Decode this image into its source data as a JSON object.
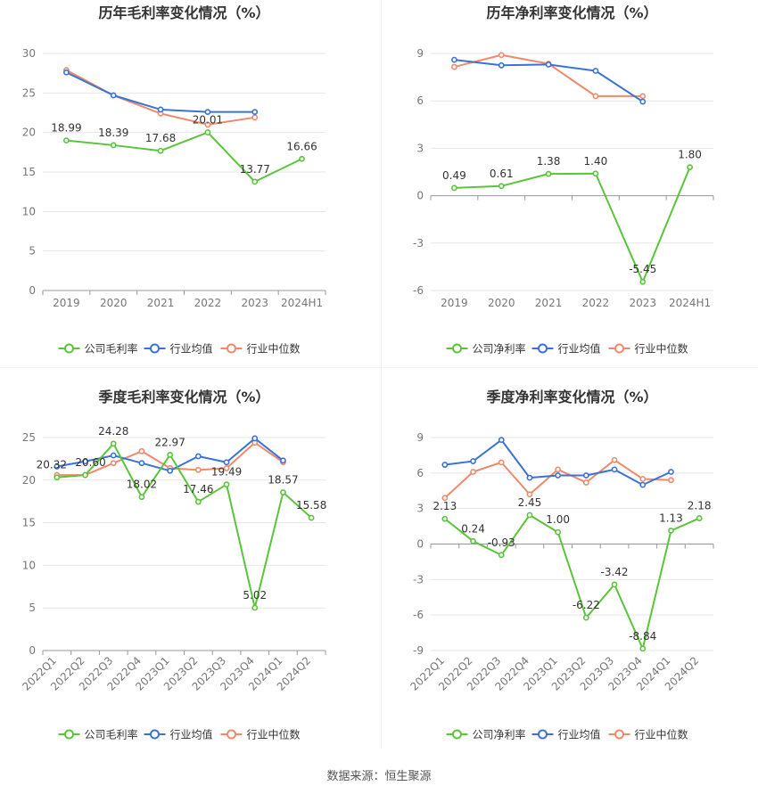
{
  "source": "数据来源：恒生聚源",
  "colors": {
    "company": "#5ac53a",
    "industry_avg": "#3a72d8",
    "industry_median": "#f0896a",
    "grid": "#e6e6e6",
    "axis_text": "#777777",
    "label_text": "#333333"
  },
  "chart_data": [
    {
      "id": "annual-gross",
      "type": "line",
      "title": "历年毛利率变化情况（%）",
      "categories": [
        "2019",
        "2020",
        "2021",
        "2022",
        "2023",
        "2024H1"
      ],
      "yticks": [
        0,
        5,
        10,
        15,
        20,
        25,
        30
      ],
      "ylim": [
        0,
        30
      ],
      "rotate_x": false,
      "series": [
        {
          "key": "company",
          "name": "公司毛利率",
          "values": [
            18.99,
            18.39,
            17.68,
            20.01,
            13.77,
            16.66
          ],
          "labels": [
            "18.99",
            "18.39",
            "17.68",
            "20.01",
            "13.77",
            "16.66"
          ]
        },
        {
          "key": "industry_avg",
          "name": "行业均值",
          "values": [
            27.6,
            24.7,
            22.9,
            22.6,
            22.6,
            null
          ]
        },
        {
          "key": "industry_median",
          "name": "行业中位数",
          "values": [
            27.9,
            24.7,
            22.4,
            21.0,
            21.9,
            null
          ]
        }
      ]
    },
    {
      "id": "annual-net",
      "type": "line",
      "title": "历年净利率变化情况（%）",
      "categories": [
        "2019",
        "2020",
        "2021",
        "2022",
        "2023",
        "2024H1"
      ],
      "yticks": [
        -6,
        -3,
        0,
        3,
        6,
        9
      ],
      "ylim": [
        -6,
        9
      ],
      "rotate_x": false,
      "series": [
        {
          "key": "company",
          "name": "公司净利率",
          "values": [
            0.49,
            0.61,
            1.38,
            1.4,
            -5.45,
            1.8
          ],
          "labels": [
            "0.49",
            "0.61",
            "1.38",
            "1.40",
            "-5.45",
            "1.80"
          ]
        },
        {
          "key": "industry_avg",
          "name": "行业均值",
          "values": [
            8.6,
            8.25,
            8.3,
            7.9,
            5.95,
            null
          ]
        },
        {
          "key": "industry_median",
          "name": "行业中位数",
          "values": [
            8.15,
            8.9,
            8.35,
            6.3,
            6.3,
            null
          ]
        }
      ]
    },
    {
      "id": "quarterly-gross",
      "type": "line",
      "title": "季度毛利率变化情况（%）",
      "categories": [
        "2022Q1",
        "2022Q2",
        "2022Q3",
        "2022Q4",
        "2023Q1",
        "2023Q2",
        "2023Q3",
        "2023Q4",
        "2024Q1",
        "2024Q2"
      ],
      "yticks": [
        0,
        5,
        10,
        15,
        20,
        25
      ],
      "ylim": [
        0,
        25
      ],
      "rotate_x": true,
      "series": [
        {
          "key": "company",
          "name": "公司毛利率",
          "values": [
            20.32,
            20.6,
            24.28,
            18.02,
            22.97,
            17.46,
            19.49,
            5.02,
            18.57,
            15.58
          ],
          "labels": [
            "20.32",
            "20.60",
            "24.28",
            "18.02",
            "22.97",
            "17.46",
            "19.49",
            "5.02",
            "18.57",
            "15.58"
          ]
        },
        {
          "key": "industry_avg",
          "name": "行业均值",
          "values": [
            21.6,
            22.2,
            22.9,
            22.0,
            21.1,
            22.8,
            22.1,
            24.9,
            22.3,
            null
          ]
        },
        {
          "key": "industry_median",
          "name": "行业中位数",
          "values": [
            20.6,
            20.6,
            22.0,
            23.4,
            21.4,
            21.2,
            21.4,
            24.4,
            22.1,
            null
          ]
        }
      ]
    },
    {
      "id": "quarterly-net",
      "type": "line",
      "title": "季度净利率变化情况（%）",
      "categories": [
        "2022Q1",
        "2022Q2",
        "2022Q3",
        "2022Q4",
        "2023Q1",
        "2023Q2",
        "2023Q3",
        "2023Q4",
        "2024Q1",
        "2024Q2"
      ],
      "yticks": [
        -9,
        -6,
        -3,
        0,
        3,
        6,
        9
      ],
      "ylim": [
        -9,
        9
      ],
      "rotate_x": true,
      "series": [
        {
          "key": "company",
          "name": "公司净利率",
          "values": [
            2.13,
            0.24,
            -0.93,
            2.45,
            1.0,
            -6.22,
            -3.42,
            -8.84,
            1.13,
            2.18
          ],
          "labels": [
            "2.13",
            "0.24",
            "-0.93",
            "2.45",
            "1.00",
            "-6.22",
            "-3.42",
            "-8.84",
            "1.13",
            "2.18"
          ]
        },
        {
          "key": "industry_avg",
          "name": "行业均值",
          "values": [
            6.7,
            7.0,
            8.8,
            5.6,
            5.8,
            5.8,
            6.3,
            5.0,
            6.1,
            null
          ]
        },
        {
          "key": "industry_median",
          "name": "行业中位数",
          "values": [
            3.9,
            6.1,
            6.9,
            4.2,
            6.3,
            5.2,
            7.1,
            5.5,
            5.4,
            null
          ]
        }
      ]
    }
  ]
}
